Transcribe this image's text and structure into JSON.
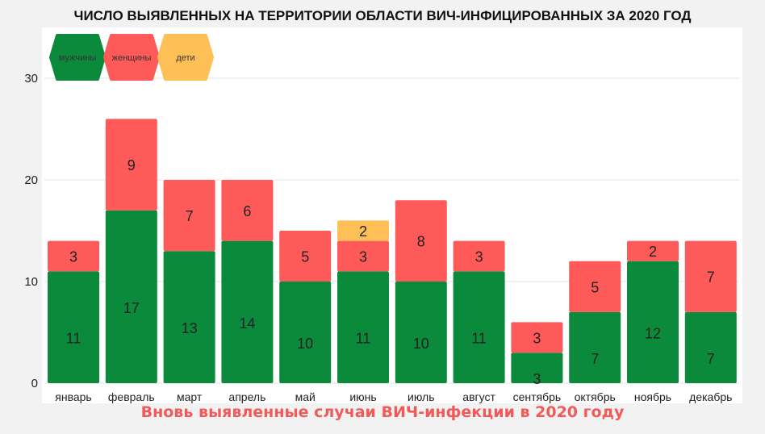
{
  "page_title": "ЧИСЛО ВЫЯВЛЕННЫХ НА ТЕРРИТОРИИ ОБЛАСТИ ВИЧ-ИНФИЦИРОВАННЫХ ЗА 2020 ГОД",
  "chart_data": {
    "type": "bar",
    "stacked": true,
    "title": "ЧИСЛО ВЫЯВЛЕННЫХ НА ТЕРРИТОРИИ ОБЛАСТИ ВИЧ-ИНФИЦИРОВАННЫХ ЗА 2020 ГОД",
    "xlabel": "Вновь выявленные случаи ВИЧ-инфекции в 2020 году",
    "ylabel": "",
    "ylim": [
      0,
      30
    ],
    "yticks": [
      0,
      10,
      20,
      30
    ],
    "grid": true,
    "legend_position": "top-left",
    "categories": [
      "январь",
      "февраль",
      "март",
      "апрель",
      "май",
      "июнь",
      "июль",
      "август",
      "сентябрь",
      "октябрь",
      "ноябрь",
      "декабрь"
    ],
    "series": [
      {
        "name": "мужчины",
        "color": "#0a8a3a",
        "values": [
          11,
          17,
          13,
          14,
          10,
          11,
          10,
          11,
          3,
          7,
          12,
          7
        ]
      },
      {
        "name": "женщины",
        "color": "#ff5a5a",
        "values": [
          3,
          9,
          7,
          6,
          5,
          3,
          8,
          3,
          3,
          5,
          2,
          7
        ]
      },
      {
        "name": "дети",
        "color": "#ffbf57",
        "values": [
          0,
          0,
          0,
          0,
          0,
          2,
          0,
          0,
          0,
          0,
          0,
          0
        ]
      }
    ],
    "xlabel_color": "#f25a5a"
  }
}
